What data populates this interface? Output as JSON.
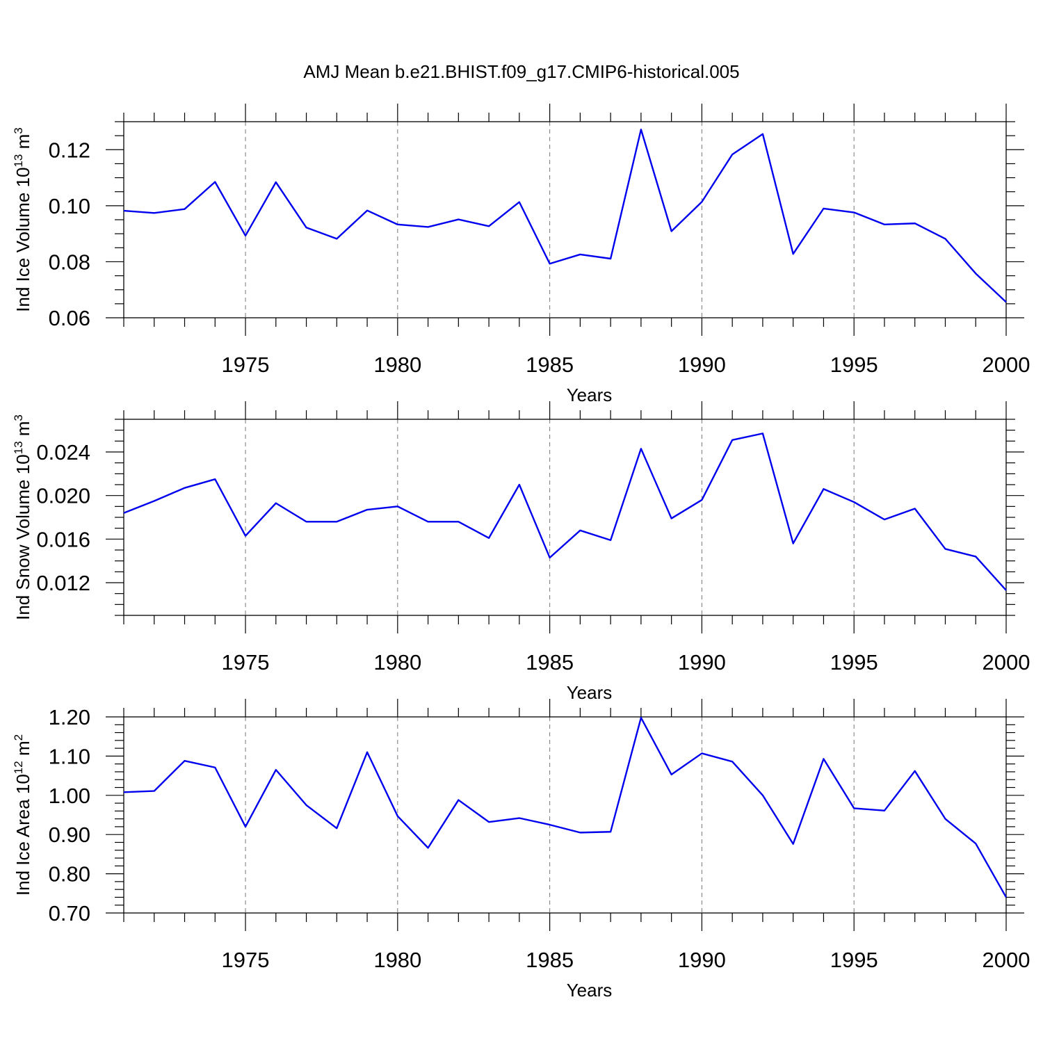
{
  "title": "AMJ Mean b.e21.BHIST.f09_g17.CMIP6-historical.005",
  "chart_data": [
    {
      "type": "line",
      "ylabel": "Ind Ice Volume 10",
      "ylabel_exp": "13",
      "ylabel_unit": " m",
      "ylabel_unit_exp": "3",
      "xlabel": "Years",
      "xlim": [
        1971,
        2000
      ],
      "ylim": [
        0.06,
        0.13
      ],
      "y_major_ticks": [
        0.06,
        0.08,
        0.1,
        0.12
      ],
      "y_tick_labels": [
        "0.06",
        "0.08",
        "0.10",
        "0.12"
      ],
      "y_minor_step": 0.005,
      "x_major_ticks": [
        1975,
        1980,
        1985,
        1990,
        1995,
        2000
      ],
      "x_tick_labels": [
        "1975",
        "1980",
        "1985",
        "1990",
        "1995",
        "2000"
      ],
      "grid": "vertical dashed at major x ticks",
      "color": "#0000ee",
      "x": [
        1971,
        1972,
        1973,
        1974,
        1975,
        1976,
        1977,
        1978,
        1979,
        1980,
        1981,
        1982,
        1983,
        1984,
        1985,
        1986,
        1987,
        1988,
        1989,
        1990,
        1991,
        1992,
        1993,
        1994,
        1995,
        1996,
        1997,
        1998,
        1999,
        2000
      ],
      "values": [
        0.0982,
        0.0974,
        0.0988,
        0.1085,
        0.0893,
        0.1084,
        0.0922,
        0.0882,
        0.0983,
        0.0933,
        0.0924,
        0.0951,
        0.0927,
        0.1013,
        0.0793,
        0.0826,
        0.0811,
        0.1272,
        0.0909,
        0.1014,
        0.1183,
        0.1256,
        0.0828,
        0.099,
        0.0976,
        0.0933,
        0.0937,
        0.0882,
        0.0758,
        0.0656
      ]
    },
    {
      "type": "line",
      "ylabel": "Ind Snow Volume 10",
      "ylabel_exp": "13",
      "ylabel_unit": " m",
      "ylabel_unit_exp": "3",
      "xlabel": "Years",
      "xlim": [
        1971,
        2000
      ],
      "ylim": [
        0.009,
        0.027
      ],
      "y_major_ticks": [
        0.012,
        0.016,
        0.02,
        0.024
      ],
      "y_tick_labels": [
        "0.012",
        "0.016",
        "0.020",
        "0.024"
      ],
      "y_minor_step": 0.001,
      "x_major_ticks": [
        1975,
        1980,
        1985,
        1990,
        1995,
        2000
      ],
      "x_tick_labels": [
        "1975",
        "1980",
        "1985",
        "1990",
        "1995",
        "2000"
      ],
      "grid": "vertical dashed at major x ticks",
      "color": "#0000ee",
      "x": [
        1971,
        1972,
        1973,
        1974,
        1975,
        1976,
        1977,
        1978,
        1979,
        1980,
        1981,
        1982,
        1983,
        1984,
        1985,
        1986,
        1987,
        1988,
        1989,
        1990,
        1991,
        1992,
        1993,
        1994,
        1995,
        1996,
        1997,
        1998,
        1999,
        2000
      ],
      "values": [
        0.0184,
        0.0195,
        0.0207,
        0.0215,
        0.0163,
        0.0193,
        0.0176,
        0.0176,
        0.0187,
        0.019,
        0.0176,
        0.0176,
        0.0161,
        0.021,
        0.0143,
        0.0168,
        0.0159,
        0.0243,
        0.0179,
        0.0196,
        0.0251,
        0.0257,
        0.0156,
        0.0206,
        0.0194,
        0.0178,
        0.0188,
        0.0151,
        0.0144,
        0.0113
      ]
    },
    {
      "type": "line",
      "ylabel": "Ind Ice Area 10",
      "ylabel_exp": "12",
      "ylabel_unit": " m",
      "ylabel_unit_exp": "2",
      "xlabel": "Years",
      "xlim": [
        1971,
        2000
      ],
      "ylim": [
        0.7,
        1.2
      ],
      "y_major_ticks": [
        0.7,
        0.8,
        0.9,
        1.0,
        1.1,
        1.2
      ],
      "y_tick_labels": [
        "0.70",
        "0.80",
        "0.90",
        "1.00",
        "1.10",
        "1.20"
      ],
      "y_minor_step": 0.02,
      "x_major_ticks": [
        1975,
        1980,
        1985,
        1990,
        1995,
        2000
      ],
      "x_tick_labels": [
        "1975",
        "1980",
        "1985",
        "1990",
        "1995",
        "2000"
      ],
      "grid": "vertical dashed at major x ticks",
      "color": "#0000ee",
      "x": [
        1971,
        1972,
        1973,
        1974,
        1975,
        1976,
        1977,
        1978,
        1979,
        1980,
        1981,
        1982,
        1983,
        1984,
        1985,
        1986,
        1987,
        1988,
        1989,
        1990,
        1991,
        1992,
        1993,
        1994,
        1995,
        1996,
        1997,
        1998,
        1999,
        2000
      ],
      "values": [
        1.008,
        1.011,
        1.088,
        1.071,
        0.92,
        1.065,
        0.975,
        0.916,
        1.11,
        0.947,
        0.866,
        0.988,
        0.932,
        0.942,
        0.925,
        0.905,
        0.907,
        1.198,
        1.053,
        1.107,
        1.086,
        1.0,
        0.876,
        1.093,
        0.967,
        0.961,
        1.062,
        0.94,
        0.877,
        0.74
      ]
    }
  ]
}
